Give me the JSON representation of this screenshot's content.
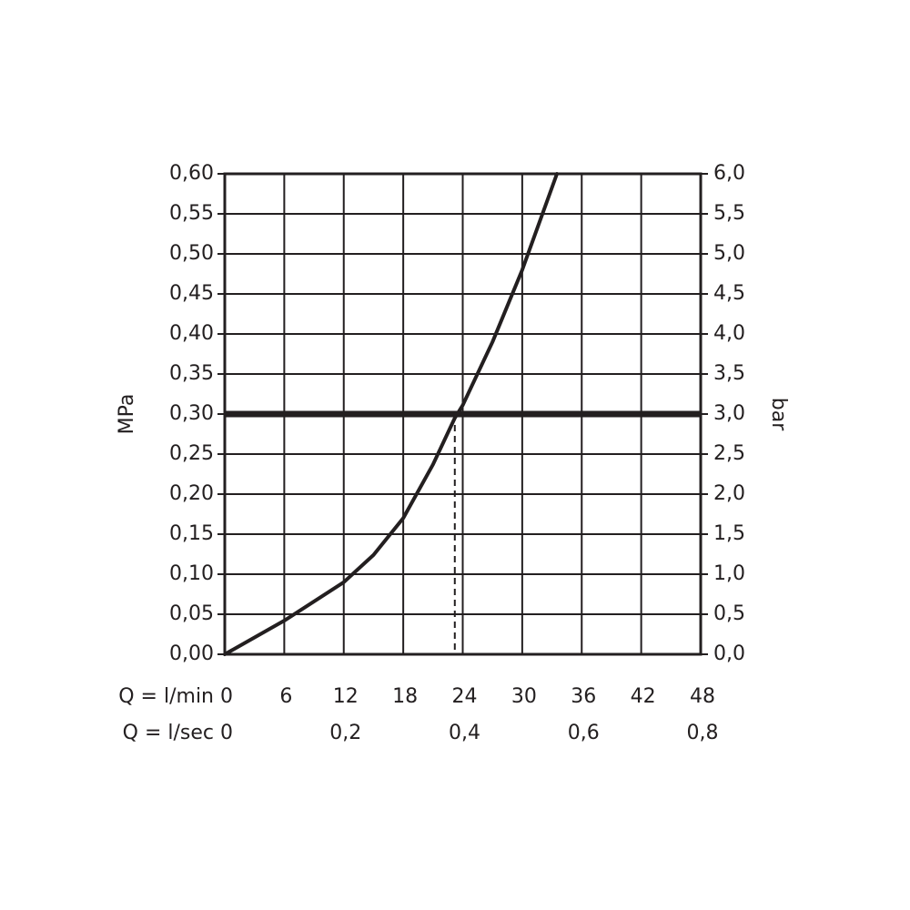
{
  "chart_data": {
    "type": "line",
    "y_label": "MPa",
    "y2_label": "bar",
    "x_label": "Q = l/min",
    "x2_label": "Q = l/sec",
    "x": [
      0,
      6,
      12,
      15,
      18,
      21,
      23.2,
      24,
      27,
      30,
      33.5
    ],
    "series": [
      {
        "color": "#231f20",
        "values": [
          0,
          0.042,
          0.09,
          0.124,
          0.17,
          0.237,
          0.295,
          0.311,
          0.39,
          0.48,
          0.6
        ]
      }
    ],
    "xlim": [
      0,
      48
    ],
    "xticks": [
      0,
      6,
      12,
      18,
      24,
      30,
      36,
      42,
      48
    ],
    "x2lim": [
      0,
      0.8
    ],
    "x2ticks": [
      0,
      {
        "value": 0.2,
        "label": "0,2"
      },
      {
        "value": 0.4,
        "label": "0,4"
      },
      {
        "value": 0.6,
        "label": "0,6"
      },
      {
        "value": 0.8,
        "label": "0,8"
      }
    ],
    "ylim": [
      0,
      0.6
    ],
    "yticks": [
      {
        "value": 0,
        "label": "0,00"
      },
      {
        "value": 0.05,
        "label": "0,05"
      },
      {
        "value": 0.1,
        "label": "0,10"
      },
      {
        "value": 0.15,
        "label": "0,15"
      },
      {
        "value": 0.2,
        "label": "0,20"
      },
      {
        "value": 0.25,
        "label": "0,25"
      },
      {
        "value": 0.3,
        "label": "0,30"
      },
      {
        "value": 0.35,
        "label": "0,35"
      },
      {
        "value": 0.4,
        "label": "0,40"
      },
      {
        "value": 0.45,
        "label": "0,45"
      },
      {
        "value": 0.5,
        "label": "0,50"
      },
      {
        "value": 0.55,
        "label": "0,55"
      },
      {
        "value": 0.6,
        "label": "0,60"
      }
    ],
    "y2lim": [
      0,
      6
    ],
    "y2ticks": [
      {
        "value": 0,
        "label": "0,0"
      },
      {
        "value": 0.5,
        "label": "0,5"
      },
      {
        "value": 1,
        "label": "1,0"
      },
      {
        "value": 1.5,
        "label": "1,5"
      },
      {
        "value": 2,
        "label": "2,0"
      },
      {
        "value": 2.5,
        "label": "2,5"
      },
      {
        "value": 3,
        "label": "3,0"
      },
      {
        "value": 3.5,
        "label": "3,5"
      },
      {
        "value": 4,
        "label": "4,0"
      },
      {
        "value": 4.5,
        "label": "4,5"
      },
      {
        "value": 5,
        "label": "5,0"
      },
      {
        "value": 5.5,
        "label": "5,5"
      },
      {
        "value": 6,
        "label": "6,0"
      }
    ],
    "grid": true,
    "ref_y": 0.3,
    "ref_x": 23.2
  }
}
